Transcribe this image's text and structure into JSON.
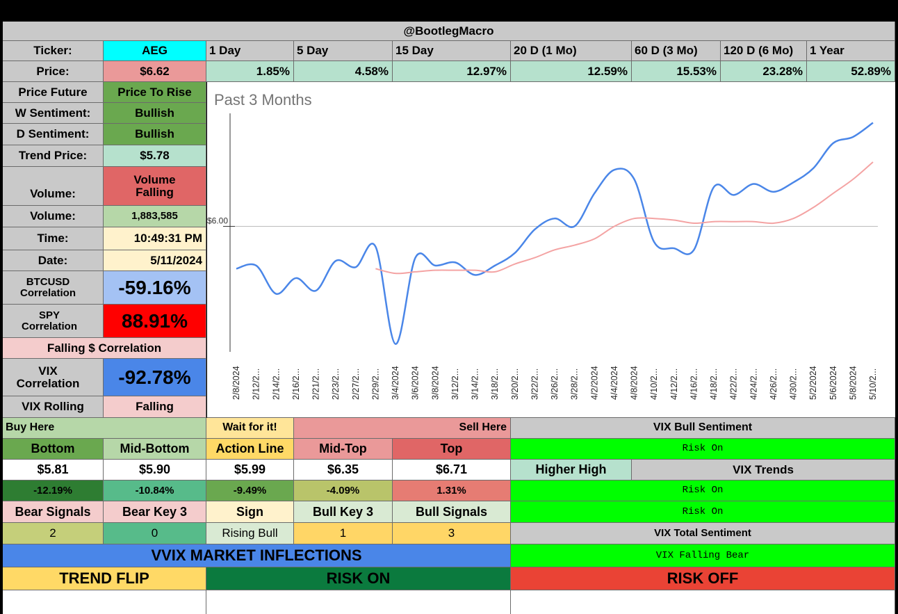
{
  "title": "@BootlegMacro",
  "header": {
    "ticker_label": "Ticker:",
    "ticker": "AEG",
    "periods": [
      "1 Day",
      "5 Day",
      "15 Day",
      "20 D (1 Mo)",
      "60 D (3 Mo)",
      "120 D (6 Mo)",
      "1 Year"
    ]
  },
  "price_row": {
    "label": "Price:",
    "price": "$6.62",
    "returns": [
      "1.85%",
      "4.58%",
      "12.97%",
      "12.59%",
      "15.53%",
      "23.28%",
      "52.89%"
    ]
  },
  "side": {
    "price_future_label": "Price Future",
    "price_future": "Price To Rise",
    "w_sentiment_label": "W Sentiment:",
    "w_sentiment": "Bullish",
    "d_sentiment_label": "D Sentiment:",
    "d_sentiment": "Bullish",
    "trend_price_label": "Trend Price:",
    "trend_price": "$5.78",
    "volume_label": "Volume:",
    "volume_status": "Volume Falling",
    "volume_count_label": "Volume:",
    "volume_count": "1,883,585",
    "time_label": "Time:",
    "time": "10:49:31 PM",
    "date_label": "Date:",
    "date": "5/11/2024",
    "btc_label": "BTCUSD Correlation",
    "btc_corr": "-59.16%",
    "spy_label": "SPY Correlation",
    "spy_corr": "88.91%",
    "falling_corr": "Falling $ Correlation",
    "vix_label": "VIX Correlation",
    "vix_corr": "-92.78%",
    "vix_rolling_label": "VIX Rolling",
    "vix_rolling": "Falling"
  },
  "chart_data": {
    "type": "line",
    "title": "Past 3 Months",
    "y_tick_label": "$6.00",
    "x": [
      "2/8/2024",
      "2/12/2...",
      "2/14/2...",
      "2/16/2...",
      "2/21/2...",
      "2/23/2...",
      "2/27/2...",
      "2/29/2...",
      "3/4/2024",
      "3/6/2024",
      "3/8/2024",
      "3/12/2...",
      "3/14/2...",
      "3/18/2...",
      "3/20/2...",
      "3/22/2...",
      "3/26/2...",
      "3/28/2...",
      "4/2/2024",
      "4/4/2024",
      "4/8/2024",
      "4/10/2...",
      "4/12/2...",
      "4/16/2...",
      "4/18/2...",
      "4/22/2...",
      "4/24/2...",
      "4/26/2...",
      "4/30/2...",
      "5/2/2024",
      "5/6/2024",
      "5/8/2024",
      "5/10/2..."
    ],
    "ylim": [
      5.2,
      6.72
    ],
    "series": [
      {
        "color": "#4a86e8",
        "values": [
          5.73,
          5.75,
          5.57,
          5.67,
          5.59,
          5.78,
          5.74,
          5.87,
          5.25,
          5.8,
          5.75,
          5.77,
          5.69,
          5.75,
          5.83,
          5.98,
          6.05,
          6.0,
          6.21,
          6.36,
          6.3,
          5.9,
          5.86,
          5.85,
          6.25,
          6.2,
          6.27,
          6.22,
          6.28,
          6.37,
          6.53,
          6.57,
          6.66
        ]
      },
      {
        "color": "#f4a3a3",
        "values": [
          null,
          null,
          null,
          null,
          null,
          null,
          null,
          5.73,
          5.7,
          5.71,
          5.72,
          5.72,
          5.72,
          5.71,
          5.76,
          5.8,
          5.85,
          5.88,
          5.92,
          6.0,
          6.05,
          6.05,
          6.04,
          6.02,
          6.03,
          6.03,
          6.03,
          6.02,
          6.05,
          6.12,
          6.21,
          6.3,
          6.41
        ]
      }
    ]
  },
  "zones": {
    "buy_here": "Buy Here",
    "wait": "Wait for it!",
    "sell_here": "Sell Here",
    "levels": [
      "Bottom",
      "Mid-Bottom",
      "Action Line",
      "Mid-Top",
      "Top"
    ],
    "prices": [
      "$5.81",
      "$5.90",
      "$5.99",
      "$6.35",
      "$6.71"
    ],
    "pcts": [
      "-12.19%",
      "-10.84%",
      "-9.49%",
      "-4.09%",
      "1.31%"
    ],
    "pct_colors": [
      "#2e7d32",
      "#57bb8a",
      "#6aa84f",
      "#b9c46a",
      "#e67c73"
    ]
  },
  "signals": {
    "labels": [
      "Bear Signals",
      "Bear Key 3",
      "Sign",
      "Bull Key 3",
      "Bull Signals"
    ],
    "values": [
      "2",
      "0",
      "Rising Bull",
      "1",
      "3"
    ]
  },
  "vix": {
    "bull_sentiment_label": "VIX Bull Sentiment",
    "bull_sentiment": "Risk On",
    "higher_high": "Higher High",
    "trends_label": "VIX Trends",
    "trend1": "Risk On",
    "trend2": "Risk On",
    "total_label": "VIX Total Sentiment",
    "total": "VIX Falling Bear"
  },
  "vvix": {
    "title": "VVIX MARKET INFLECTIONS",
    "trend_flip": "TREND FLIP",
    "risk_on": "RISK ON",
    "risk_off": "RISK OFF"
  }
}
